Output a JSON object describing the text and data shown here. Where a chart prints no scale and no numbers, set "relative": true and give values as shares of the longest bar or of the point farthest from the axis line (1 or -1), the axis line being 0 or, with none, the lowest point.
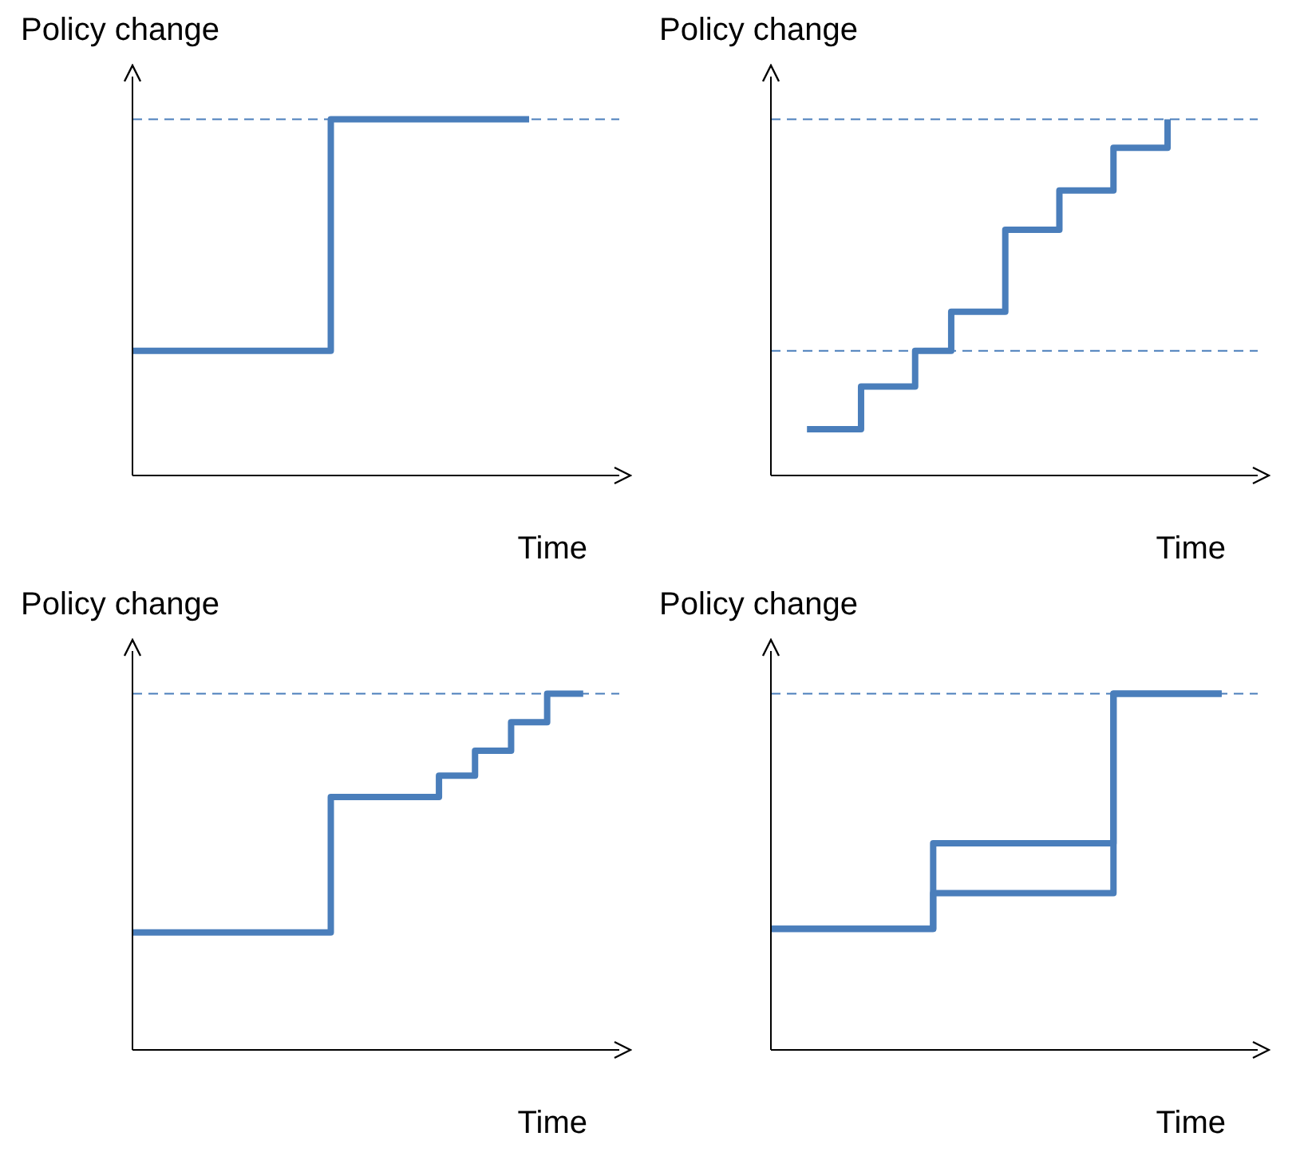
{
  "chart_data": [
    {
      "type": "step",
      "ylabel": "Policy change",
      "xlabel": "Time",
      "relative": true,
      "categories": [
        null,
        null,
        null,
        null,
        null,
        null,
        null,
        null,
        null,
        null,
        null,
        null,
        null,
        null,
        null,
        null,
        null,
        null,
        null,
        null,
        null,
        null,
        null,
        null,
        null,
        null
      ],
      "series": [
        {
          "color": "#4a7ebb",
          "values": [
            0.35,
            0.35,
            0.35,
            0.35,
            0.35,
            0.35,
            0.35,
            0.35,
            0.35,
            0.35,
            0.35,
            1,
            1,
            1,
            1,
            1,
            1,
            1,
            1,
            1,
            1,
            1,
            1,
            null,
            null,
            null
          ]
        }
      ],
      "ref_lines": [
        {
          "axis": "y",
          "value": 1,
          "color": "#4a7ebb",
          "line_style": "dashed"
        }
      ]
    },
    {
      "type": "step",
      "ylabel": "Policy change",
      "xlabel": "Time",
      "relative": true,
      "categories": [
        null,
        null,
        null,
        null,
        null,
        null,
        null,
        null,
        null,
        null,
        null,
        null,
        null,
        null,
        null,
        null,
        null,
        null,
        null,
        null,
        null,
        null,
        null,
        null,
        null,
        null
      ],
      "series": [
        {
          "color": "#4a7ebb",
          "values": [
            null,
            null,
            0.13,
            0.13,
            0.13,
            0.25,
            0.25,
            0.25,
            0.35,
            0.35,
            0.46,
            0.46,
            0.46,
            0.69,
            0.69,
            0.69,
            0.8,
            0.8,
            0.8,
            0.92,
            0.92,
            0.92,
            1,
            null,
            null,
            null
          ]
        }
      ],
      "ref_lines": [
        {
          "axis": "y",
          "value": 0.35,
          "color": "#4a7ebb",
          "line_style": "dashed"
        },
        {
          "axis": "y",
          "value": 1,
          "color": "#4a7ebb",
          "line_style": "dashed"
        }
      ]
    },
    {
      "type": "step",
      "ylabel": "Policy change",
      "xlabel": "Time",
      "relative": true,
      "categories": [
        null,
        null,
        null,
        null,
        null,
        null,
        null,
        null,
        null,
        null,
        null,
        null,
        null,
        null,
        null,
        null,
        null,
        null,
        null,
        null,
        null,
        null,
        null,
        null,
        null,
        null
      ],
      "series": [
        {
          "color": "#4a7ebb",
          "values": [
            0.33,
            0.33,
            0.33,
            0.33,
            0.33,
            0.33,
            0.33,
            0.33,
            0.33,
            0.33,
            0.33,
            0.71,
            0.71,
            0.71,
            0.71,
            0.71,
            0.71,
            0.77,
            0.77,
            0.84,
            0.84,
            0.92,
            0.92,
            1,
            1,
            1
          ]
        }
      ],
      "ref_lines": [
        {
          "axis": "y",
          "value": 1,
          "color": "#4a7ebb",
          "line_style": "dashed"
        }
      ]
    },
    {
      "type": "step",
      "ylabel": "Policy change",
      "xlabel": "Time",
      "relative": true,
      "categories": [
        null,
        null,
        null,
        null,
        null,
        null,
        null,
        null,
        null,
        null,
        null,
        null,
        null,
        null,
        null,
        null,
        null,
        null,
        null,
        null,
        null,
        null,
        null,
        null,
        null,
        null
      ],
      "series": [
        {
          "color": "#4a7ebb",
          "values": [
            0.34,
            0.34,
            0.34,
            0.34,
            0.34,
            0.34,
            0.34,
            0.34,
            0.34,
            0.58,
            0.58,
            0.58,
            0.58,
            0.58,
            0.58,
            0.58,
            0.58,
            0.58,
            0.58,
            1,
            1,
            1,
            1,
            1,
            1,
            1
          ]
        },
        {
          "color": "#4a7ebb",
          "values": [
            0.34,
            0.34,
            0.34,
            0.34,
            0.34,
            0.34,
            0.34,
            0.34,
            0.34,
            0.44,
            0.44,
            0.44,
            0.44,
            0.44,
            0.44,
            0.44,
            0.44,
            0.44,
            0.44,
            1,
            1,
            1,
            1,
            1,
            1,
            1
          ]
        }
      ],
      "ref_lines": [
        {
          "axis": "y",
          "value": 1,
          "color": "#4a7ebb",
          "line_style": "dashed"
        }
      ]
    }
  ]
}
